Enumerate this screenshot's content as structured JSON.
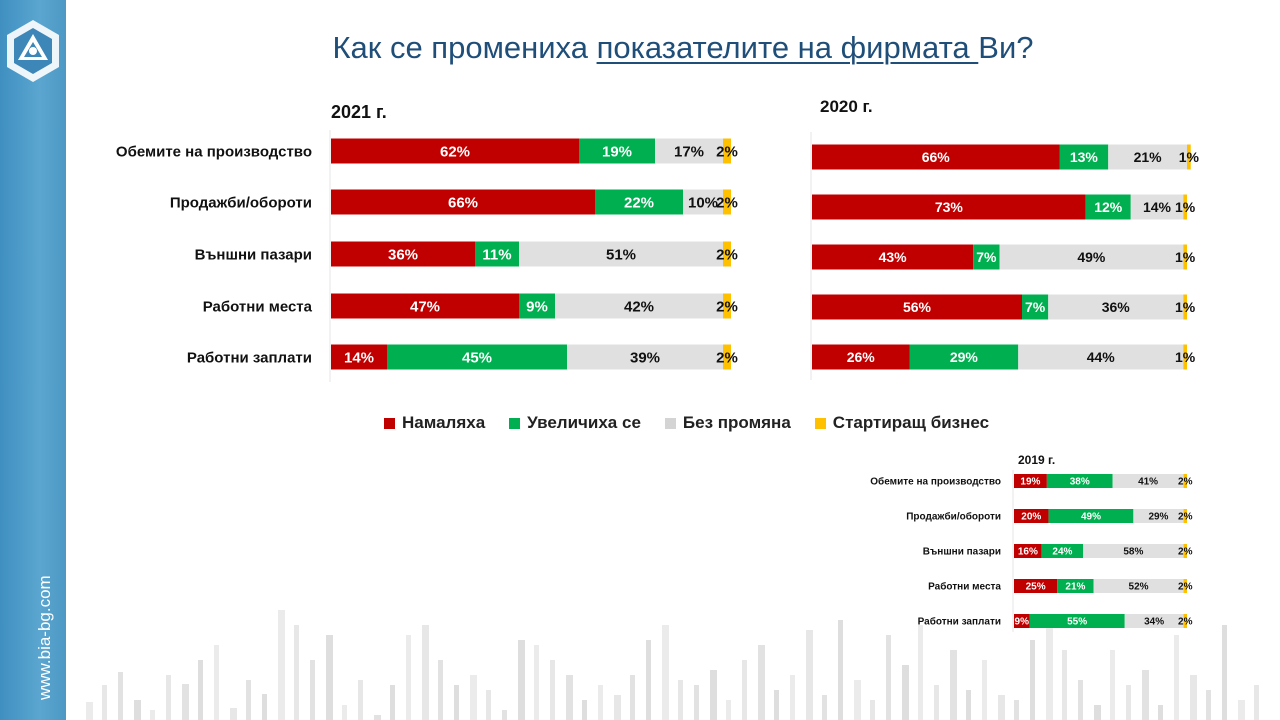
{
  "title": {
    "part1": "Как се промениха ",
    "underlined": "показателите на фирмата ",
    "part2": "Ви?"
  },
  "sidebar": {
    "url": "www.bia-bg.com"
  },
  "colors": {
    "decreased": "#c00000",
    "increased": "#00b050",
    "unchanged": "#e0e0e0",
    "startup": "#ffc000"
  },
  "legend": [
    {
      "label": "Намаляха",
      "color": "#c00000"
    },
    {
      "label": "Увеличиха се",
      "color": "#00b050"
    },
    {
      "label": "Без промяна",
      "color": "#d4d4d4"
    },
    {
      "label": "Стартиращ бизнес",
      "color": "#ffc000"
    }
  ],
  "chart_data": [
    {
      "type": "bar",
      "stacked": true,
      "orientation": "horizontal",
      "title": "2021 г.",
      "categories": [
        "Обемите на производство",
        "Продажби/обороти",
        "Външни пазари",
        "Работни места",
        "Работни заплати"
      ],
      "series": [
        {
          "name": "Намаляха",
          "values": [
            62,
            66,
            36,
            47,
            14
          ]
        },
        {
          "name": "Увеличиха се",
          "values": [
            19,
            22,
            11,
            9,
            45
          ]
        },
        {
          "name": "Без промяна",
          "values": [
            17,
            10,
            51,
            42,
            39
          ]
        },
        {
          "name": "Стартиращ бизнес",
          "values": [
            2,
            2,
            2,
            2,
            2
          ]
        }
      ],
      "xlim": [
        0,
        100
      ]
    },
    {
      "type": "bar",
      "stacked": true,
      "orientation": "horizontal",
      "title": "2020 г.",
      "categories": [
        "Обемите на производство",
        "Продажби/обороти",
        "Външни пазари",
        "Работни места",
        "Работни заплати"
      ],
      "series": [
        {
          "name": "Намаляха",
          "values": [
            66,
            73,
            43,
            56,
            26
          ]
        },
        {
          "name": "Увеличиха се",
          "values": [
            13,
            12,
            7,
            7,
            29
          ]
        },
        {
          "name": "Без промяна",
          "values": [
            21,
            14,
            49,
            36,
            44
          ]
        },
        {
          "name": "Стартиращ бизнес",
          "values": [
            1,
            1,
            1,
            1,
            1
          ]
        }
      ],
      "xlim": [
        0,
        100
      ]
    },
    {
      "type": "bar",
      "stacked": true,
      "orientation": "horizontal",
      "title": "2019 г.",
      "categories": [
        "Обемите на производство",
        "Продажби/обороти",
        "Външни пазари",
        "Работни места",
        "Работни заплати"
      ],
      "series": [
        {
          "name": "Намаляха",
          "values": [
            19,
            20,
            16,
            25,
            9
          ]
        },
        {
          "name": "Увеличиха се",
          "values": [
            38,
            49,
            24,
            21,
            55
          ]
        },
        {
          "name": "Без промяна",
          "values": [
            41,
            29,
            58,
            52,
            34
          ]
        },
        {
          "name": "Стартиращ бизнес",
          "values": [
            2,
            2,
            2,
            2,
            2
          ]
        }
      ],
      "xlim": [
        0,
        100
      ]
    }
  ]
}
